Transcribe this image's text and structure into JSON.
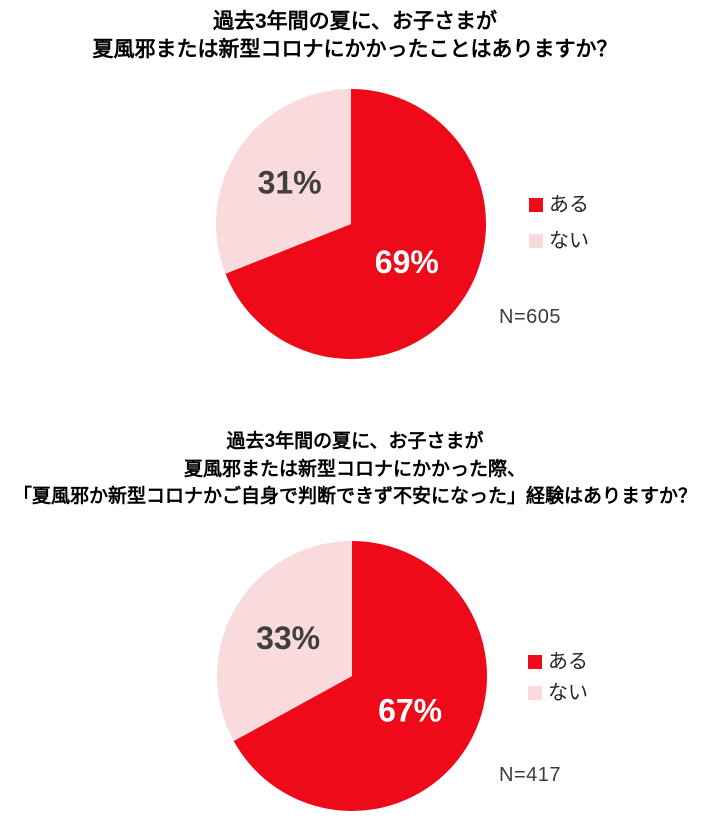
{
  "page": {
    "background": "#FFFFFF"
  },
  "colors": {
    "accent_red": "#EE0A18",
    "accent_pink": "#F9DADD",
    "title_text": "#000000",
    "legend_text": "#262626",
    "note_text": "#3D3D3D"
  },
  "chart_data": [
    {
      "type": "pie",
      "title": "過去3年間の夏に、お子さまが\n夏風邪または新型コロナにかかったことはありますか？",
      "labels": [
        "ある",
        "ない"
      ],
      "values": [
        69,
        31
      ],
      "value_labels": [
        "69%",
        "31%"
      ],
      "colors": [
        "#EE0A18",
        "#F9DADD"
      ],
      "value_label_colors": [
        "#FFFFFF",
        "#404040"
      ],
      "start_angle_deg": 0,
      "direction": "clockwise",
      "legend_position": "right",
      "note": "N=605"
    },
    {
      "type": "pie",
      "title": "過去3年間の夏に、お子さまが\n夏風邪または新型コロナにかかった際、\n「夏風邪か新型コロナかご自身で判断できず不安になった」経験はありますか？",
      "labels": [
        "ある",
        "ない"
      ],
      "values": [
        67,
        33
      ],
      "value_labels": [
        "67%",
        "33%"
      ],
      "colors": [
        "#EE0A18",
        "#F9DADD"
      ],
      "value_label_colors": [
        "#FFFFFF",
        "#404040"
      ],
      "start_angle_deg": 0,
      "direction": "clockwise",
      "legend_position": "right",
      "note": "N=417"
    }
  ]
}
